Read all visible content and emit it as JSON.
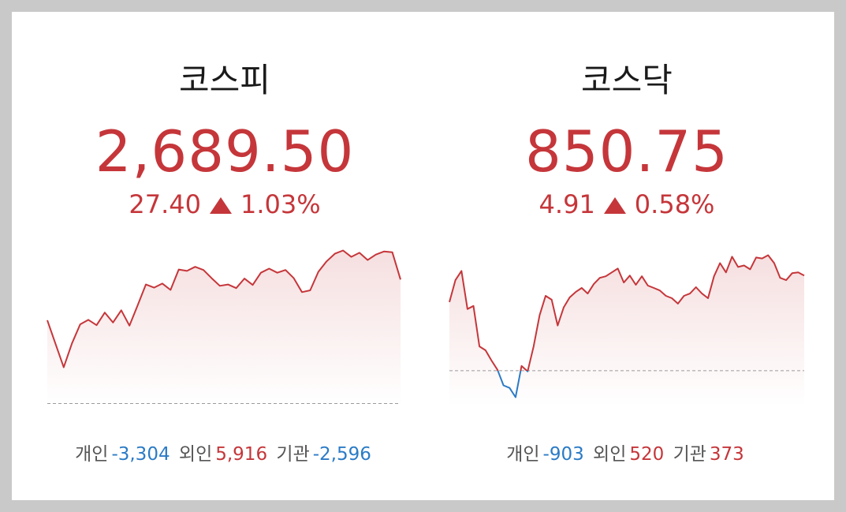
{
  "cards": [
    {
      "title": "코스피",
      "price": "2,689.50",
      "change": "27.40",
      "change_pct": "1.03%",
      "color": "#c5363a",
      "down_color": "#2b7bc6",
      "flows": [
        {
          "label": "개인",
          "amount": "-3,304"
        },
        {
          "label": "외인",
          "amount": "5,916"
        },
        {
          "label": "기관",
          "amount": "-2,596"
        }
      ],
      "chart": {
        "type": "line",
        "baseline": 2662.1,
        "ylim": [
          2661.5,
          2700
        ],
        "values": [
          2680.5,
          2675.3,
          2670.1,
          2675.4,
          2679.6,
          2680.6,
          2679.4,
          2682.2,
          2680.0,
          2682.7,
          2679.3,
          2683.8,
          2688.4,
          2687.7,
          2688.6,
          2687.2,
          2691.7,
          2691.4,
          2692.3,
          2691.6,
          2689.8,
          2688.1,
          2688.4,
          2687.6,
          2689.7,
          2688.3,
          2691.0,
          2691.9,
          2691.0,
          2691.6,
          2689.8,
          2686.7,
          2687.1,
          2691.2,
          2693.5,
          2695.2,
          2695.9,
          2694.5,
          2695.4,
          2693.8,
          2695.0,
          2695.7,
          2695.5,
          2689.5
        ]
      }
    },
    {
      "title": "코스닥",
      "price": "850.75",
      "change": "4.91",
      "change_pct": "0.58%",
      "color": "#c5363a",
      "down_color": "#2b7bc6",
      "flows": [
        {
          "label": "개인",
          "amount": "-903"
        },
        {
          "label": "외인",
          "amount": "520"
        },
        {
          "label": "기관",
          "amount": "373"
        }
      ],
      "chart": {
        "type": "line",
        "baseline": 845.84,
        "ylim": [
          844,
          853
        ],
        "values": [
          849.38,
          850.51,
          850.99,
          849.02,
          849.18,
          847.09,
          846.89,
          846.36,
          845.88,
          845.08,
          844.95,
          844.47,
          846.08,
          845.8,
          847.09,
          848.7,
          849.7,
          849.5,
          848.17,
          849.1,
          849.62,
          849.9,
          850.11,
          849.82,
          850.31,
          850.63,
          850.71,
          850.91,
          851.11,
          850.39,
          850.75,
          850.27,
          850.71,
          850.23,
          850.11,
          849.98,
          849.7,
          849.58,
          849.3,
          849.7,
          849.82,
          850.15,
          849.82,
          849.58,
          850.71,
          851.39,
          850.91,
          851.72,
          851.19,
          851.27,
          851.07,
          851.68,
          851.63,
          851.8,
          851.39,
          850.63,
          850.51,
          850.87,
          850.91,
          850.75
        ]
      }
    }
  ]
}
